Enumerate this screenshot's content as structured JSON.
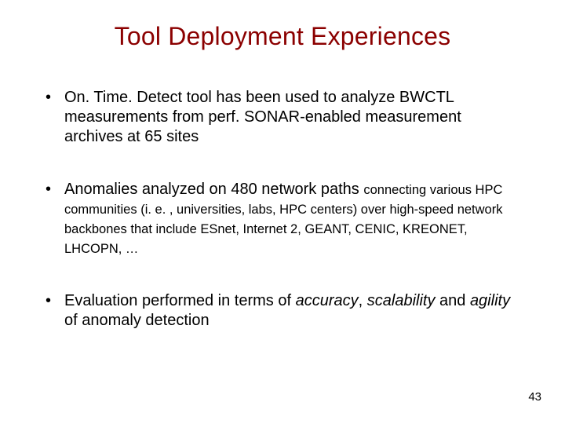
{
  "slide": {
    "title": "Tool Deployment Experiences",
    "page_number": "43",
    "background_color": "#ffffff",
    "title_color": "#8b0000",
    "text_color": "#000000",
    "title_fontsize": 32,
    "body_fontsize": 20,
    "small_fontsize": 16.5,
    "bullets": [
      {
        "text": "On. Time. Detect tool has been used to analyze BWCTL measurements from perf. SONAR-enabled measurement archives at 65 sites"
      },
      {
        "lead": "Anomalies analyzed on 480 network paths ",
        "tail": "connecting various HPC communities (i. e. , universities, labs, HPC centers) over high-speed network backbones that include ESnet, Internet 2, GEANT, CENIC, KREONET, LHCOPN, …"
      },
      {
        "p1": "Evaluation performed in terms of ",
        "i1": "accuracy",
        "p2": ", ",
        "i2": "scalability",
        "p3": " and ",
        "i3": "agility",
        "p4": " of anomaly detection"
      }
    ]
  }
}
